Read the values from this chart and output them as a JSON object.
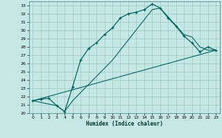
{
  "xlabel": "Humidex (Indice chaleur)",
  "xlim": [
    -0.5,
    23.5
  ],
  "ylim": [
    20,
    33.5
  ],
  "xticks": [
    0,
    1,
    2,
    3,
    4,
    5,
    6,
    7,
    8,
    9,
    10,
    11,
    12,
    13,
    14,
    15,
    16,
    17,
    18,
    19,
    20,
    21,
    22,
    23
  ],
  "yticks": [
    20,
    21,
    22,
    23,
    24,
    25,
    26,
    27,
    28,
    29,
    30,
    31,
    32,
    33
  ],
  "background_color": "#c5e8e4",
  "grid_color": "#a0c8c4",
  "line_color": "#006060",
  "line1_x": [
    0,
    1,
    2,
    3,
    4,
    5,
    6,
    7,
    8,
    9,
    10,
    11,
    12,
    13,
    14,
    15,
    16,
    17,
    18,
    19,
    20,
    21,
    22,
    23
  ],
  "line1_y": [
    21.5,
    21.7,
    21.8,
    20.9,
    20.2,
    23.2,
    26.4,
    27.8,
    28.5,
    29.5,
    30.3,
    31.5,
    32.0,
    32.2,
    32.5,
    33.2,
    32.7,
    31.5,
    30.5,
    29.3,
    28.5,
    27.4,
    28.0,
    27.6
  ],
  "line2_x": [
    0,
    23
  ],
  "line2_y": [
    21.5,
    27.6
  ],
  "line3_x": [
    0,
    3,
    4,
    5,
    10,
    15,
    16,
    19,
    20,
    21,
    22,
    23
  ],
  "line3_y": [
    21.5,
    20.9,
    20.2,
    21.5,
    26.4,
    32.5,
    32.7,
    29.5,
    29.2,
    28.0,
    27.6,
    27.6
  ]
}
